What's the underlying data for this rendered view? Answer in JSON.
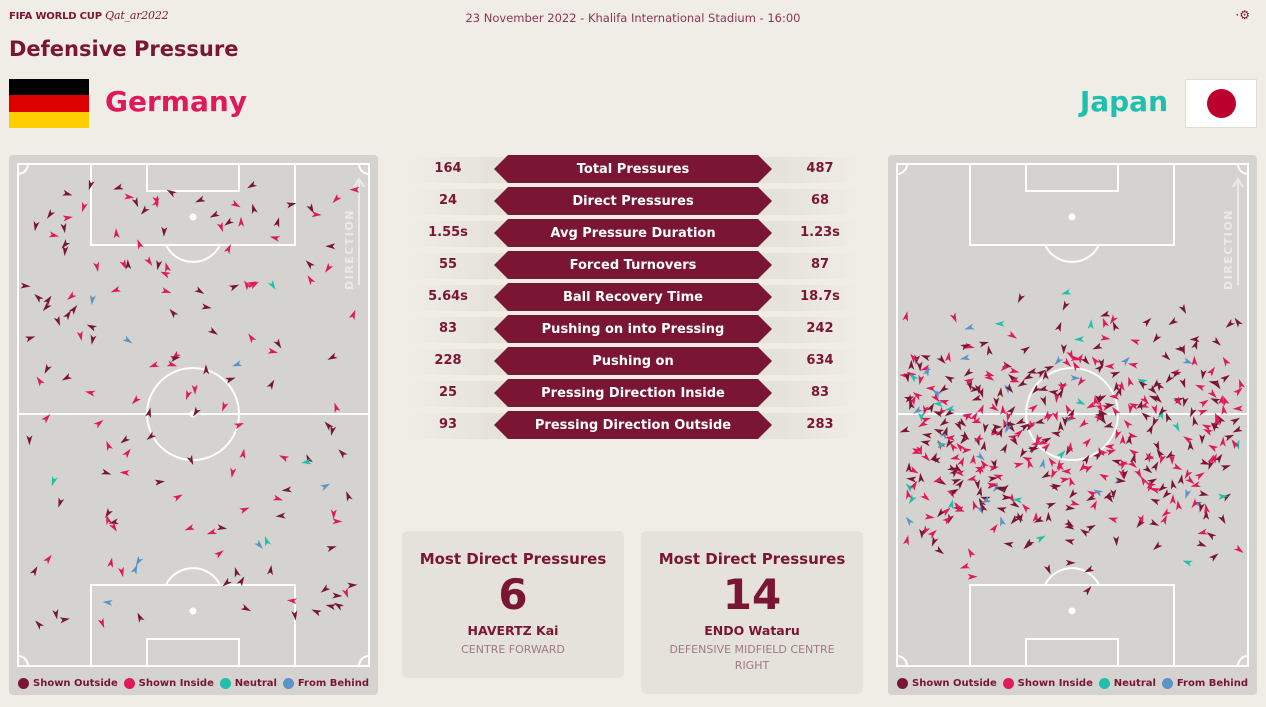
{
  "brand": {
    "fifa": "FIFA WORLD CUP",
    "qatar": "Qat_ar2022"
  },
  "match_info": "23 November 2022 - Khalifa International Stadium - 16:00",
  "page_title": "Defensive Pressure",
  "teams": {
    "home": {
      "name": "Germany",
      "color": "#e0195a"
    },
    "away": {
      "name": "Japan",
      "color": "#1fbfac"
    }
  },
  "direction_label": "DIRECTION",
  "stats": [
    {
      "label": "Total Pressures",
      "home": "164",
      "away": "487"
    },
    {
      "label": "Direct Pressures",
      "home": "24",
      "away": "68"
    },
    {
      "label": "Avg Pressure Duration",
      "home": "1.55s",
      "away": "1.23s"
    },
    {
      "label": "Forced Turnovers",
      "home": "55",
      "away": "87"
    },
    {
      "label": "Ball Recovery Time",
      "home": "5.64s",
      "away": "18.7s"
    },
    {
      "label": "Pushing on into Pressing",
      "home": "83",
      "away": "242"
    },
    {
      "label": "Pushing on",
      "home": "228",
      "away": "634"
    },
    {
      "label": "Pressing Direction Inside",
      "home": "25",
      "away": "83"
    },
    {
      "label": "Pressing Direction Outside",
      "home": "93",
      "away": "283"
    }
  ],
  "cards": {
    "home": {
      "title": "Most Direct Pressures",
      "value": "6",
      "player": "HAVERTZ Kai",
      "role": "CENTRE FORWARD"
    },
    "away": {
      "title": "Most Direct Pressures",
      "value": "14",
      "player": "ENDO Wataru",
      "role": "DEFENSIVE MIDFIELD CENTRE RIGHT"
    }
  },
  "legend": [
    {
      "label": "Shown Outside",
      "color": "#7a1634"
    },
    {
      "label": "Shown Inside",
      "color": "#e0195a"
    },
    {
      "label": "Neutral",
      "color": "#1fbfac"
    },
    {
      "label": "From Behind",
      "color": "#5b93c9"
    }
  ]
}
